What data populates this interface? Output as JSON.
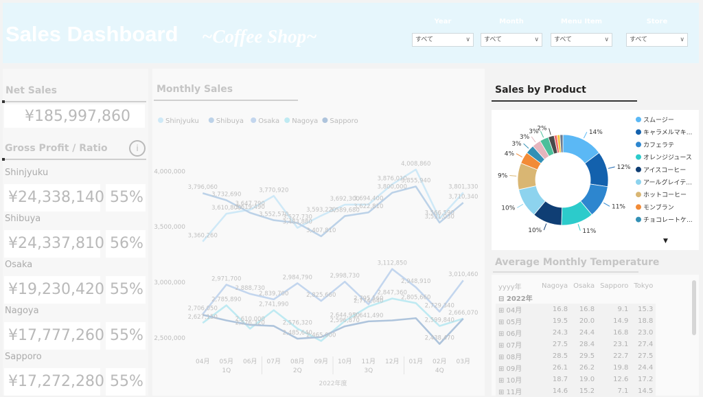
{
  "header": {
    "title": "Sales Dashboard",
    "subtitle": "~Coffee Shop~",
    "slicers": [
      {
        "label": "Year",
        "value": "すべて"
      },
      {
        "label": "Month",
        "value": "すべて"
      },
      {
        "label": "Menu Item",
        "value": "すべて"
      },
      {
        "label": "Store",
        "value": "すべて"
      }
    ]
  },
  "kpis": {
    "net_sales_title": "Net Sales",
    "net_sales_value": "¥185,997,860",
    "gross_title": "Gross Profit /  Ratio",
    "info_icon": "i",
    "stores": [
      {
        "name": "Shinjyuku",
        "profit": "¥24,338,140",
        "ratio": "55%"
      },
      {
        "name": "Shibuya",
        "profit": "¥24,337,810",
        "ratio": "56%"
      },
      {
        "name": "Osaka",
        "profit": "¥19,230,420",
        "ratio": "55%"
      },
      {
        "name": "Nagoya",
        "profit": "¥17,777,260",
        "ratio": "55%"
      },
      {
        "name": "Sapporo",
        "profit": "¥17,272,280",
        "ratio": "55%"
      }
    ]
  },
  "monthly": {
    "title": "Monthly Sales",
    "year_label": "2022年度"
  },
  "chart_data": [
    {
      "type": "line",
      "title": "Monthly Sales",
      "categories": [
        "04月",
        "05月",
        "06月",
        "07月",
        "08月",
        "09月",
        "10月",
        "11月",
        "12月",
        "01月",
        "02月",
        "03月"
      ],
      "quarters": [
        "1Q",
        "2Q",
        "3Q",
        "4Q"
      ],
      "yticks": [
        "4,000,000",
        "3,500,000",
        "3,000,000",
        "2,500,000"
      ],
      "ylim": [
        2350000,
        4150000
      ],
      "series": [
        {
          "name": "Shinjyuku",
          "color": "#cfe9f7",
          "values": [
            3360260,
            3610800,
            3647790,
            3770920,
            3483880,
            3593220,
            3692300,
            3694400,
            3876010,
            4008860,
            3566590,
            3801330
          ],
          "labels": [
            "3,360,260",
            "3,610,800",
            "3,647,790",
            "3,770,920",
            "3,483,880",
            "3,593,220",
            "3,692,300",
            "3,694,400",
            "3,876,010",
            "4,008,860",
            "3,566,590",
            "3,801,330"
          ]
        },
        {
          "name": "Shibuya",
          "color": "#bcd2e8",
          "values": [
            3796060,
            3732690,
            3619490,
            3552570,
            3527730,
            3407810,
            3589680,
            3622810,
            3800000,
            3855940,
            3531030,
            3710340
          ],
          "labels": [
            "3,796,060",
            "3,732,690",
            "3,619,490",
            "3,552,570",
            "3,527,730",
            "3,407,810",
            "3,589,680",
            "3,622,810",
            "3,800,000",
            "3,855,940",
            "3,531,030",
            "3,710,340"
          ]
        },
        {
          "name": "Osaka",
          "color": "#c3d6ee",
          "values": [
            2706050,
            2971700,
            2888730,
            2839700,
            2984790,
            2825660,
            2998730,
            2795560,
            3112850,
            2948910,
            2729340,
            3010460
          ],
          "labels": [
            "2,706,050",
            "2,971,700",
            "2,888,730",
            "2,839,700",
            "2,984,790",
            "2,825,660",
            "2,998,730",
            "2,795,560",
            "3,112,850",
            "2,948,910",
            "2,729,340",
            "3,010,460"
          ]
        },
        {
          "name": "Nagoya",
          "color": "#bfeaf2",
          "values": [
            2627150,
            2785890,
            2576320,
            2741990,
            2576320,
            2465000,
            2644950,
            2774640,
            2847360,
            2805660,
            2599840,
            2666070
          ],
          "labels": [
            "2,627,150",
            "2,785,890",
            "2,576,320",
            "2,741,990",
            "2,576,320",
            "2,465,000",
            "2,644,950",
            "2,774,640",
            "2,847,360",
            "2,805,660",
            "2,599,840",
            "2,666,070"
          ]
        },
        {
          "name": "Sapporo",
          "color": "#aec4dc",
          "values": [
            2700000,
            2650000,
            2610000,
            2600000,
            2485640,
            2500000,
            2596870,
            2641490,
            2650000,
            2670000,
            2438470,
            2666070
          ],
          "labels": [
            "",
            "",
            "2,610,000",
            "",
            "2,485,640",
            "",
            "2,596,870",
            "2,641,490",
            "",
            "",
            "2,438,470",
            ""
          ]
        }
      ]
    },
    {
      "type": "pie",
      "title": "Sales by Product",
      "categories": [
        "スムージー",
        "キャラメルマキ...",
        "カフェラテ",
        "オレンジジュース",
        "アイスコーヒー",
        "アールグレイテ...",
        "ホットコーヒー",
        "モンブラン",
        "チョコレートケ..."
      ],
      "values": [
        14,
        12,
        11,
        11,
        10,
        10,
        9,
        4,
        3
      ],
      "extra_slices": [
        3,
        3,
        2,
        1,
        1,
        1
      ],
      "labels": [
        "14%",
        "12%",
        "11%",
        "11%",
        "10%",
        "10%",
        "9%",
        "4%",
        "3%",
        "3%",
        "3%",
        "2%"
      ],
      "colors": [
        "#5bb8f5",
        "#1361ad",
        "#2d86cf",
        "#2ccbcb",
        "#0f3e74",
        "#8dd3ee",
        "#d9b673",
        "#f28b37",
        "#3390b5",
        "#e4b5bd",
        "#4bbf9a",
        "#4a4a4a",
        "#f06c6c",
        "#f4c542",
        "#6b7a8f"
      ]
    }
  ],
  "product": {
    "title": "Sales by Product",
    "more_icon": "▼"
  },
  "temperature": {
    "title": "Average Monthly Temperature",
    "columns": [
      "yyyy年",
      "Nagoya",
      "Osaka",
      "Sapporo",
      "Tokyo"
    ],
    "year": "2022年",
    "rows": [
      {
        "month": "04月",
        "nagoya": "16.8",
        "osaka": "16.8",
        "sapporo": "9.1",
        "tokyo": "15.3"
      },
      {
        "month": "05月",
        "nagoya": "19.5",
        "osaka": "20.0",
        "sapporo": "14.9",
        "tokyo": "18.8"
      },
      {
        "month": "06月",
        "nagoya": "24.3",
        "osaka": "24.4",
        "sapporo": "16.8",
        "tokyo": "23.0"
      },
      {
        "month": "07月",
        "nagoya": "27.5",
        "osaka": "28.4",
        "sapporo": "23.1",
        "tokyo": "27.4"
      },
      {
        "month": "08月",
        "nagoya": "28.5",
        "osaka": "29.5",
        "sapporo": "22.7",
        "tokyo": "27.5"
      },
      {
        "month": "09月",
        "nagoya": "26.1",
        "osaka": "26.2",
        "sapporo": "19.8",
        "tokyo": "24.4"
      },
      {
        "month": "10月",
        "nagoya": "18.7",
        "osaka": "19.0",
        "sapporo": "12.6",
        "tokyo": "17.2"
      },
      {
        "month": "11月",
        "nagoya": "14.6",
        "osaka": "15.2",
        "sapporo": "7.1",
        "tokyo": "14.5"
      }
    ]
  }
}
